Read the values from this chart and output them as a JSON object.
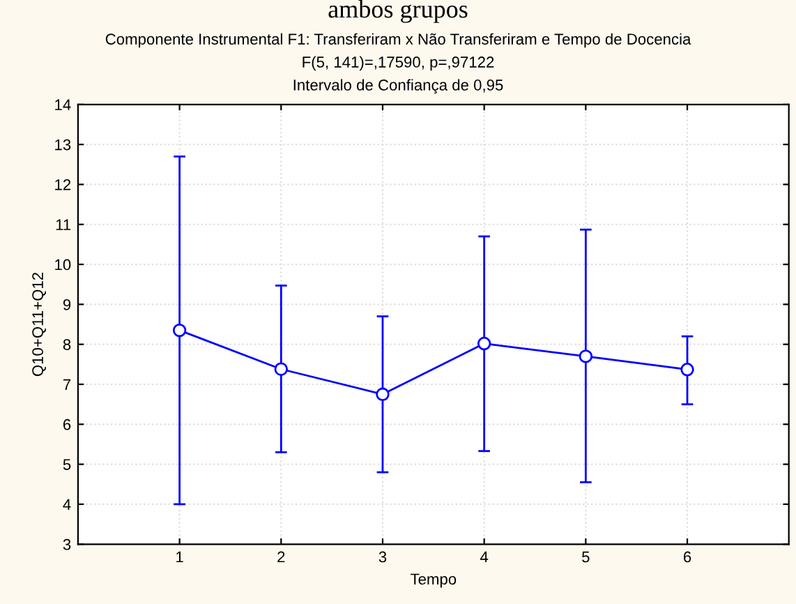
{
  "chart_data": {
    "type": "line",
    "title": "Componente Instrumental F1: Transferiram x Não Transferiram e Tempo de Docencia",
    "subtitle": "F(5, 141)=,17590, p=,97122",
    "annotations": [
      "ambos grupos",
      "Intervalo de Confiança de 0,95"
    ],
    "xlabel": "Tempo",
    "ylabel": "Q10+Q11+Q12",
    "x": [
      1,
      2,
      3,
      4,
      5,
      6
    ],
    "series": [
      {
        "color": "#0000ff",
        "values": [
          8.35,
          7.38,
          6.75,
          8.02,
          7.7,
          7.37
        ],
        "errors": [
          [
            4.0,
            12.7
          ],
          [
            5.3,
            9.47
          ],
          [
            4.8,
            8.7
          ],
          [
            5.33,
            10.7
          ],
          [
            4.55,
            10.87
          ],
          [
            6.5,
            8.2
          ]
        ]
      }
    ],
    "xlim": [
      0,
      7
    ],
    "xticks": [
      1,
      2,
      3,
      4,
      5,
      6
    ],
    "ylim": [
      3,
      14
    ],
    "yticks": [
      3,
      4,
      5,
      6,
      7,
      8,
      9,
      10,
      11,
      12,
      13,
      14
    ],
    "grid": true,
    "marker": "circle",
    "line_style": "solid",
    "legend": false
  }
}
